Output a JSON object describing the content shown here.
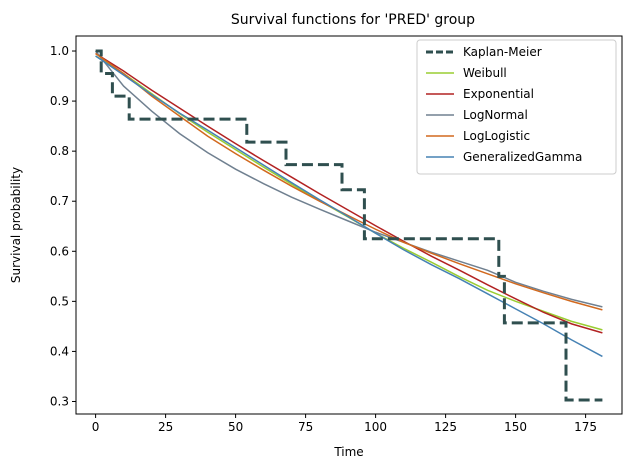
{
  "chart_data": {
    "type": "line",
    "title": "Survival functions for 'PRED' group",
    "xlabel": "Time",
    "ylabel": "Survival probability",
    "xlim": [
      -7,
      188
    ],
    "ylim": [
      0.275,
      1.03
    ],
    "xticks": [
      0,
      25,
      50,
      75,
      100,
      125,
      150,
      175
    ],
    "yticks": [
      0.3,
      0.4,
      0.5,
      0.6,
      0.7,
      0.8,
      0.9,
      1.0
    ],
    "grid": false,
    "legend_position": "top-right",
    "series": [
      {
        "name": "Kaplan-Meier",
        "style": "step",
        "color": "#2f4f4f",
        "x": [
          0,
          2,
          6,
          12,
          54,
          68,
          88,
          96,
          144,
          146,
          168,
          181
        ],
        "y": [
          1.0,
          0.955,
          0.91,
          0.864,
          0.818,
          0.773,
          0.723,
          0.625,
          0.55,
          0.457,
          0.303,
          0.303
        ]
      },
      {
        "name": "Weibull",
        "style": "line",
        "color": "#9acd32",
        "x": [
          0,
          10,
          20,
          30,
          40,
          50,
          60,
          70,
          80,
          90,
          100,
          110,
          120,
          130,
          140,
          150,
          160,
          170,
          181
        ],
        "y": [
          0.99,
          0.955,
          0.915,
          0.875,
          0.838,
          0.803,
          0.768,
          0.734,
          0.701,
          0.669,
          0.636,
          0.606,
          0.578,
          0.549,
          0.522,
          0.5,
          0.48,
          0.46,
          0.443
        ]
      },
      {
        "name": "Exponential",
        "style": "line",
        "color": "#b22222",
        "x": [
          0,
          10,
          20,
          30,
          40,
          50,
          60,
          70,
          80,
          90,
          100,
          110,
          120,
          130,
          140,
          150,
          160,
          170,
          181
        ],
        "y": [
          0.995,
          0.96,
          0.922,
          0.886,
          0.85,
          0.815,
          0.781,
          0.748,
          0.715,
          0.683,
          0.651,
          0.62,
          0.59,
          0.562,
          0.533,
          0.505,
          0.478,
          0.455,
          0.437
        ]
      },
      {
        "name": "LogNormal",
        "style": "line",
        "color": "#708090",
        "x": [
          0,
          5,
          10,
          20,
          30,
          40,
          50,
          60,
          70,
          80,
          90,
          100,
          110,
          120,
          130,
          140,
          150,
          160,
          170,
          181
        ],
        "y": [
          1.0,
          0.965,
          0.93,
          0.88,
          0.835,
          0.797,
          0.764,
          0.735,
          0.708,
          0.684,
          0.661,
          0.638,
          0.618,
          0.598,
          0.58,
          0.562,
          0.538,
          0.52,
          0.504,
          0.489
        ]
      },
      {
        "name": "LogLogistic",
        "style": "line",
        "color": "#d2691e",
        "x": [
          0,
          10,
          20,
          30,
          40,
          50,
          60,
          70,
          80,
          90,
          100,
          110,
          120,
          130,
          140,
          150,
          160,
          170,
          181
        ],
        "y": [
          0.995,
          0.955,
          0.91,
          0.87,
          0.83,
          0.795,
          0.762,
          0.73,
          0.7,
          0.672,
          0.644,
          0.618,
          0.596,
          0.575,
          0.555,
          0.535,
          0.517,
          0.5,
          0.483
        ]
      },
      {
        "name": "GeneralizedGamma",
        "style": "line",
        "color": "#4682b4",
        "x": [
          0,
          10,
          20,
          30,
          40,
          50,
          60,
          70,
          80,
          90,
          100,
          110,
          120,
          130,
          140,
          150,
          160,
          170,
          181
        ],
        "y": [
          0.99,
          0.952,
          0.913,
          0.876,
          0.842,
          0.807,
          0.772,
          0.737,
          0.703,
          0.67,
          0.636,
          0.603,
          0.573,
          0.545,
          0.515,
          0.485,
          0.455,
          0.423,
          0.39
        ]
      }
    ]
  }
}
